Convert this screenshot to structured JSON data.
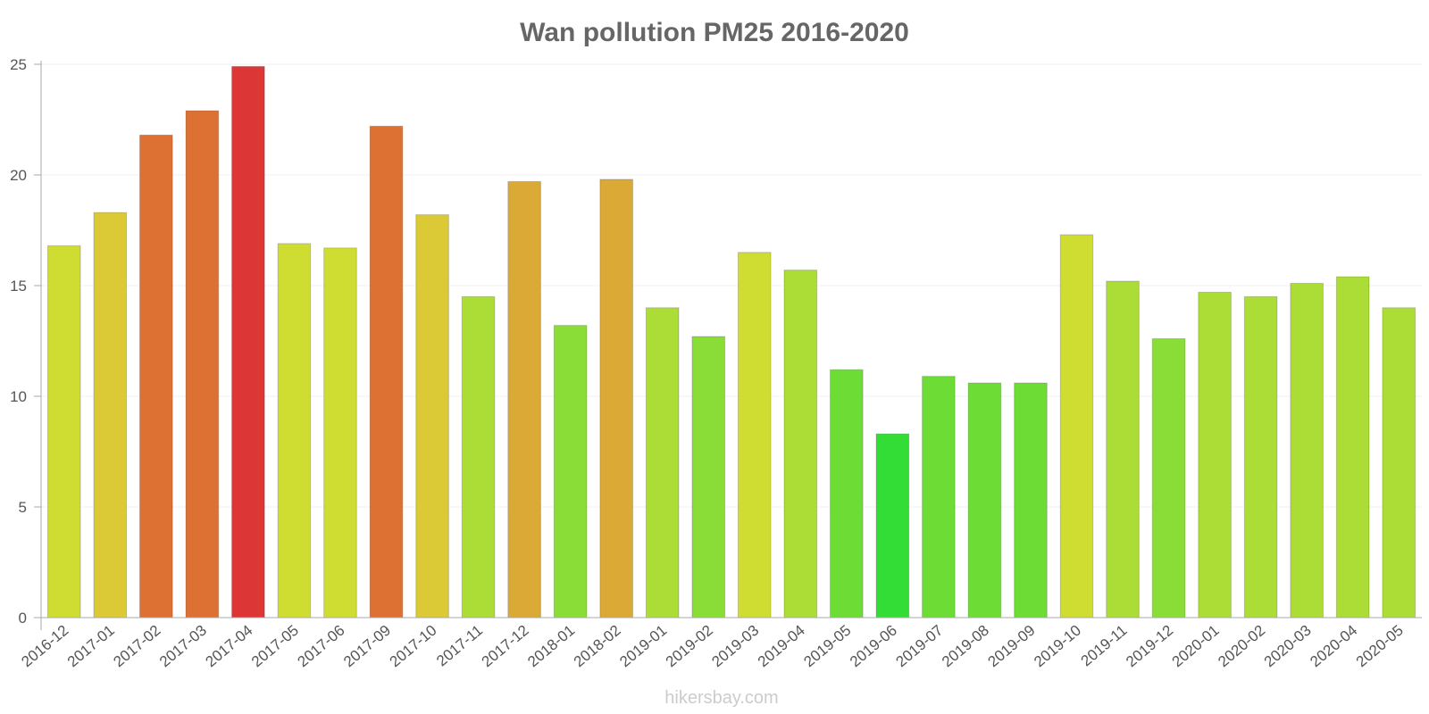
{
  "chart_data": {
    "type": "bar",
    "title": "Wan pollution PM25 2016-2020",
    "xlabel": "",
    "ylabel": "",
    "ylim": [
      0,
      25
    ],
    "yticks": [
      0,
      5,
      10,
      15,
      20,
      25
    ],
    "grid": true,
    "legend": "none",
    "categories": [
      "2016-12",
      "2017-01",
      "2017-02",
      "2017-03",
      "2017-04",
      "2017-05",
      "2017-06",
      "2017-09",
      "2017-10",
      "2017-11",
      "2017-12",
      "2018-01",
      "2018-02",
      "2019-01",
      "2019-02",
      "2019-03",
      "2019-04",
      "2019-05",
      "2019-06",
      "2019-07",
      "2019-08",
      "2019-09",
      "2019-10",
      "2019-11",
      "2019-12",
      "2020-01",
      "2020-02",
      "2020-03",
      "2020-04",
      "2020-05"
    ],
    "values": [
      16.8,
      18.3,
      21.8,
      22.9,
      24.9,
      16.9,
      16.7,
      22.2,
      18.2,
      14.5,
      19.7,
      13.2,
      19.8,
      14.0,
      12.7,
      16.5,
      15.7,
      11.2,
      8.3,
      10.9,
      10.6,
      10.6,
      17.3,
      15.2,
      12.6,
      14.7,
      14.5,
      15.1,
      15.4,
      14.0
    ],
    "colors": [
      "#cfdd33",
      "#dbca36",
      "#dd7033",
      "#dd7033",
      "#dd3636",
      "#cfdd33",
      "#cfdd33",
      "#dd7033",
      "#dbca36",
      "#acdd36",
      "#dbaa36",
      "#89dd36",
      "#dbaa36",
      "#acdd36",
      "#89dd36",
      "#cfdd33",
      "#acdd36",
      "#6ddd36",
      "#33dd36",
      "#6ddd36",
      "#6ddd36",
      "#6ddd36",
      "#cfdd33",
      "#acdd36",
      "#89dd36",
      "#acdd36",
      "#acdd36",
      "#acdd36",
      "#acdd36",
      "#acdd36"
    ],
    "source_label": "hikersbay.com"
  },
  "colors": {
    "axis": "#aaaaaa",
    "grid": "#f2f2f2",
    "bar_stroke": "rgba(0,0,0,0.18)"
  }
}
